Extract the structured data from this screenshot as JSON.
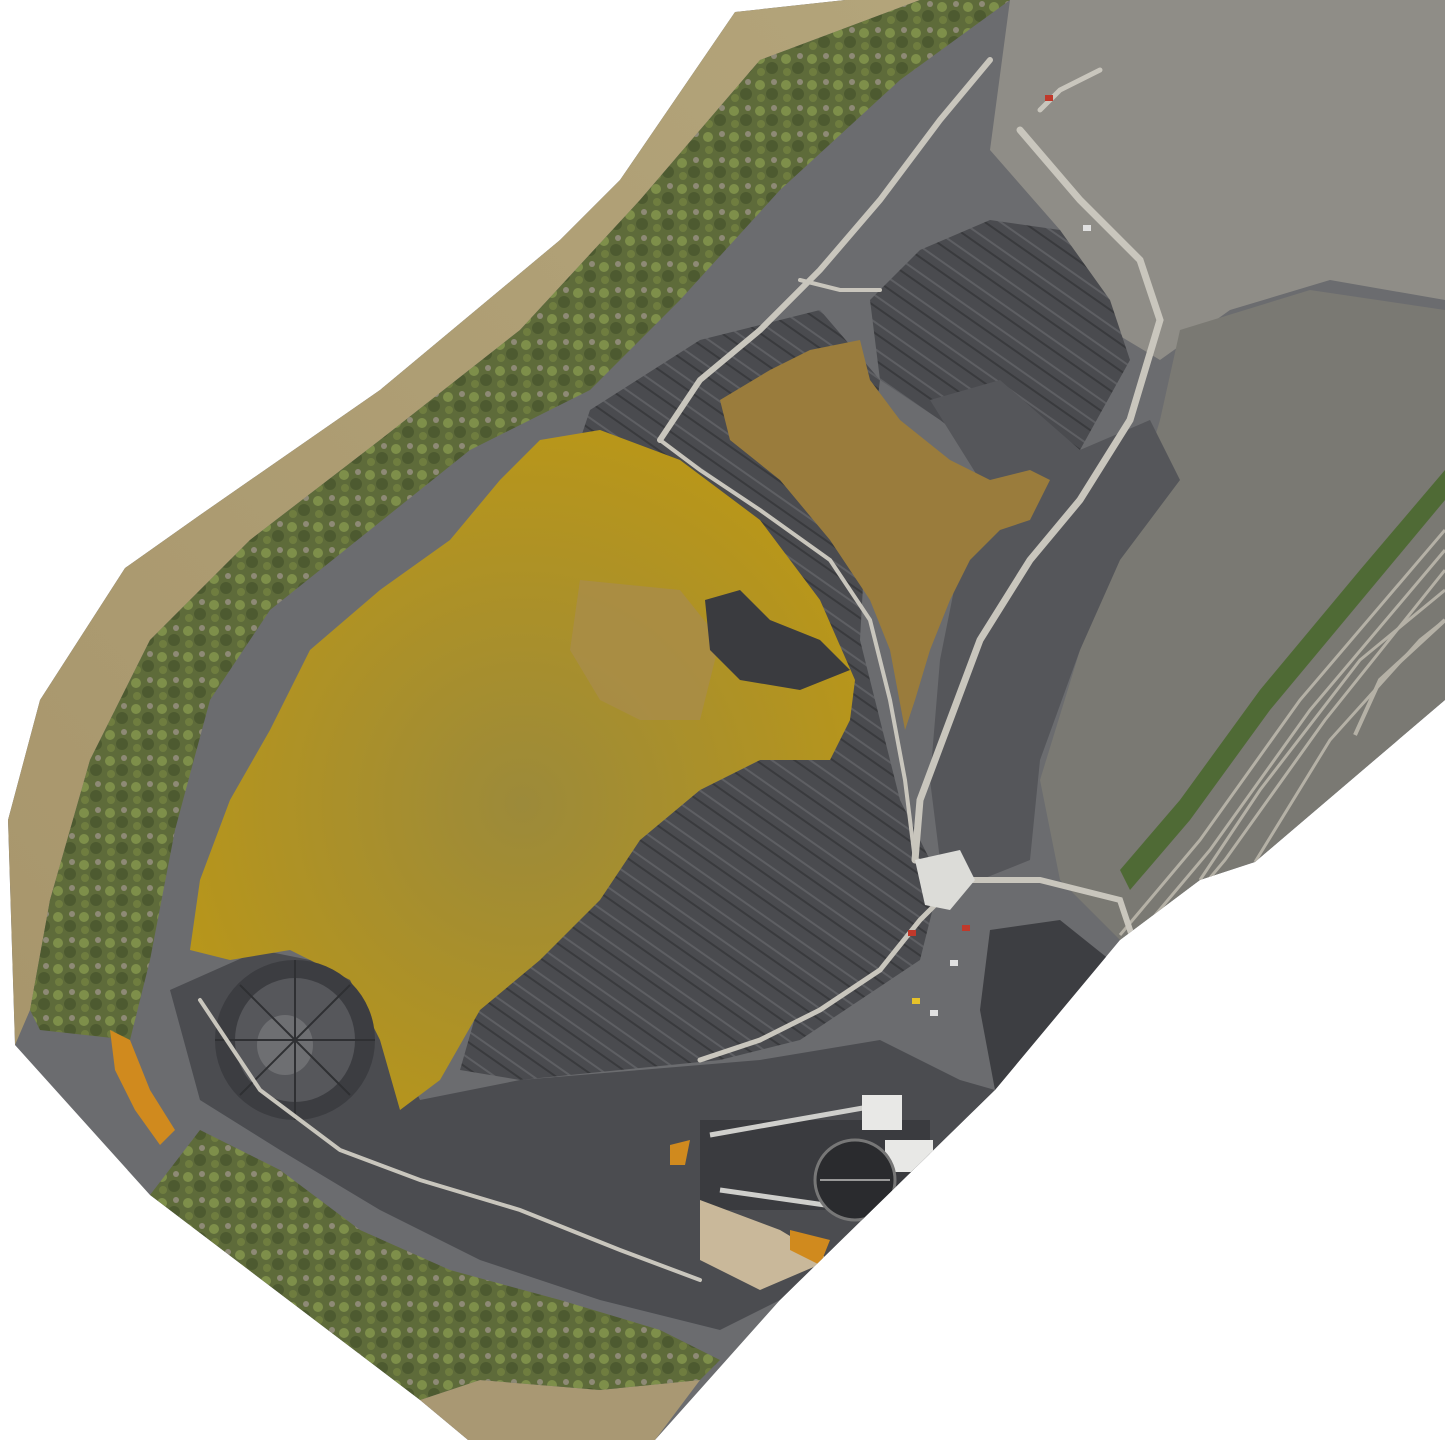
{
  "image": {
    "kind": "aerial-orthomosaic",
    "subject": "coal-ash-impoundment-site",
    "background_color": "#ffffff",
    "colors": {
      "river": "#a8966c",
      "forest": "#5e6b3a",
      "forest_light": "#7e8f4a",
      "ash_dark": "#3a3b3f",
      "ash_mid": "#5b5c60",
      "ash_light": "#8b8c8f",
      "gravel": "#9a9890",
      "large_pond": "#b8961a",
      "large_pond_shade": "#9c8a3a",
      "small_pond": "#9a7c3c",
      "road": "#c9c6bd",
      "rail": "#b5b1a6",
      "building_roof": "#e8e8e6",
      "orange_seep": "#d08a1e"
    }
  }
}
